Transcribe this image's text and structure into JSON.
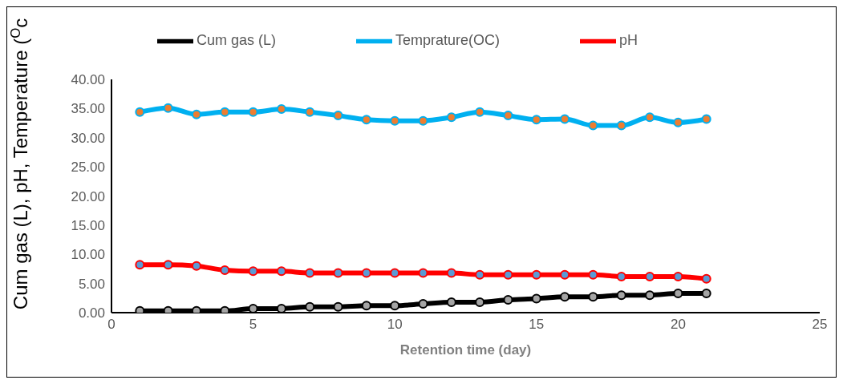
{
  "chart_data": {
    "type": "line",
    "xlabel": "Retention time (day)",
    "ylabel": "Cum gas (L), pH, Temperature ($^{O}$c",
    "x": [
      1,
      2,
      3,
      4,
      5,
      6,
      7,
      8,
      9,
      10,
      11,
      12,
      13,
      14,
      15,
      16,
      17,
      18,
      19,
      20,
      21
    ],
    "series": [
      {
        "name": "pH",
        "color": "#ff0000",
        "values": [
          8.2,
          8.2,
          8.0,
          7.3,
          7.1,
          7.1,
          6.8,
          6.8,
          6.8,
          6.8,
          6.8,
          6.8,
          6.5,
          6.5,
          6.5,
          6.5,
          6.5,
          6.2,
          6.2,
          6.2,
          5.8
        ]
      },
      {
        "name": "Temprature(OC)",
        "color": "#00b0f0",
        "values": [
          34.4,
          35.1,
          34.0,
          34.4,
          34.4,
          34.9,
          34.4,
          33.8,
          33.1,
          32.9,
          32.9,
          33.5,
          34.4,
          33.8,
          33.1,
          33.2,
          32.1,
          32.1,
          33.5,
          32.6,
          33.2
        ]
      },
      {
        "name": "Cum gas (L)",
        "color": "#000000",
        "values": [
          0.3,
          0.3,
          0.3,
          0.3,
          0.7,
          0.7,
          1.0,
          1.0,
          1.2,
          1.2,
          1.5,
          1.8,
          1.8,
          2.2,
          2.4,
          2.7,
          2.7,
          3.0,
          3.0,
          3.3,
          3.3
        ]
      }
    ],
    "xlim": [
      0,
      25
    ],
    "xticks": [
      0,
      5,
      10,
      15,
      20,
      25
    ],
    "ylim": [
      0,
      40
    ],
    "yticks": [
      {
        "value": 0,
        "label": "0.00"
      },
      {
        "value": 5,
        "label": "5.00"
      },
      {
        "value": 10,
        "label": "10.00"
      },
      {
        "value": 15,
        "label": "15.00"
      },
      {
        "value": 20,
        "label": "20.00"
      },
      {
        "value": 25,
        "label": "25.00"
      },
      {
        "value": 30,
        "label": "30.00"
      },
      {
        "value": 35,
        "label": "35.00"
      },
      {
        "value": 40,
        "label": "40.00"
      }
    ],
    "grid": false,
    "legend": "top",
    "marker": "circle",
    "line_style": "solid"
  }
}
